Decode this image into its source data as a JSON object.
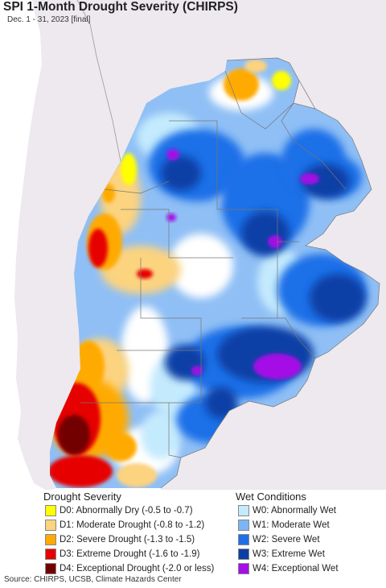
{
  "header": {
    "title": "SPI 1-Month Drought Severity (CHIRPS)",
    "subtitle": "Dec. 1 - 31, 2023 [final]"
  },
  "legend": {
    "drought_heading": "Drought Severity",
    "wet_heading": "Wet Conditions",
    "drought_items": [
      {
        "label": "D0: Abnormally Dry (-0.5 to -0.7)",
        "color": "#ffff00"
      },
      {
        "label": "D1: Moderate Drought (-0.8 to -1.2)",
        "color": "#fcd37f"
      },
      {
        "label": "D2: Severe Drought (-1.3 to -1.5)",
        "color": "#ffaa00"
      },
      {
        "label": "D3: Extreme Drought (-1.6 to -1.9)",
        "color": "#e60000"
      },
      {
        "label": "D4: Exceptional Drought (-2.0 or less)",
        "color": "#730000"
      }
    ],
    "wet_items": [
      {
        "label": "W0: Abnormally Wet",
        "color": "#c4eafd"
      },
      {
        "label": "W1: Moderate Wet",
        "color": "#7bb5f5"
      },
      {
        "label": "W2: Severe Wet",
        "color": "#1e6fe8"
      },
      {
        "label": "W3: Extreme Wet",
        "color": "#0c3fa6"
      },
      {
        "label": "W4: Exceptional Wet",
        "color": "#a50ee6"
      }
    ]
  },
  "footer": {
    "source": "Source: CHIRPS, UCSB, Climate Hazards Center"
  },
  "colors": {
    "ocean": "#ffffff",
    "outside_land": "#ede9ee",
    "no_data_land": "#ffffff",
    "borders": "#777777"
  }
}
